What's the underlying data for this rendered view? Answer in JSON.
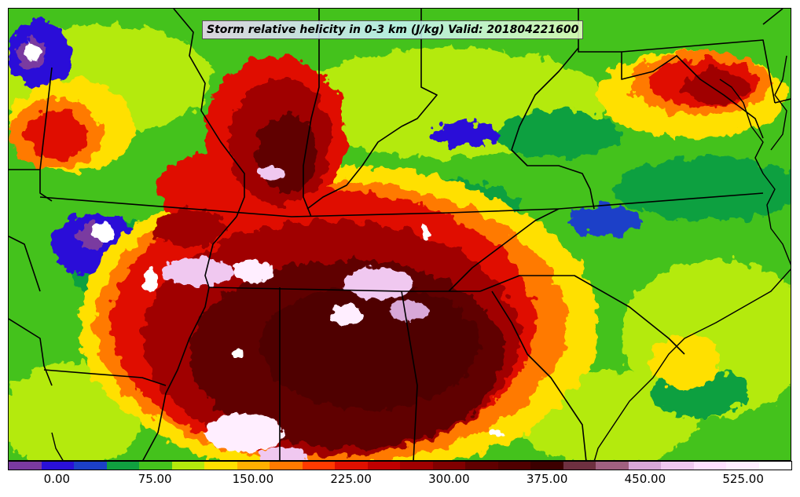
{
  "title": "Storm relative helicity in 0-3 km (J/kg) Valid: 201804221600",
  "colorbar": {
    "colors": [
      "#7a3aa0",
      "#2a10d8",
      "#1c40c8",
      "#10a040",
      "#44c21c",
      "#b4ea0c",
      "#ffe000",
      "#ffb000",
      "#ff7a00",
      "#ff3a00",
      "#e01000",
      "#c00000",
      "#a00000",
      "#800000",
      "#600000",
      "#500000",
      "#3c0000",
      "#6e3040",
      "#a06080",
      "#d8a8d8",
      "#f0c8f0",
      "#ffe0ff",
      "#ffeeff",
      "#ffffff"
    ],
    "ticks": [
      {
        "value": 0,
        "label": "0.00"
      },
      {
        "value": 75,
        "label": "75.00"
      },
      {
        "value": 150,
        "label": "150.00"
      },
      {
        "value": 225,
        "label": "225.00"
      },
      {
        "value": 300,
        "label": "300.00"
      },
      {
        "value": 375,
        "label": "375.00"
      },
      {
        "value": 450,
        "label": "450.00"
      },
      {
        "value": 525,
        "label": "525.00"
      }
    ],
    "range": [
      -37.5,
      562.5
    ]
  },
  "map": {
    "background_color": "#44c21c",
    "boundary_color": "#000000"
  }
}
